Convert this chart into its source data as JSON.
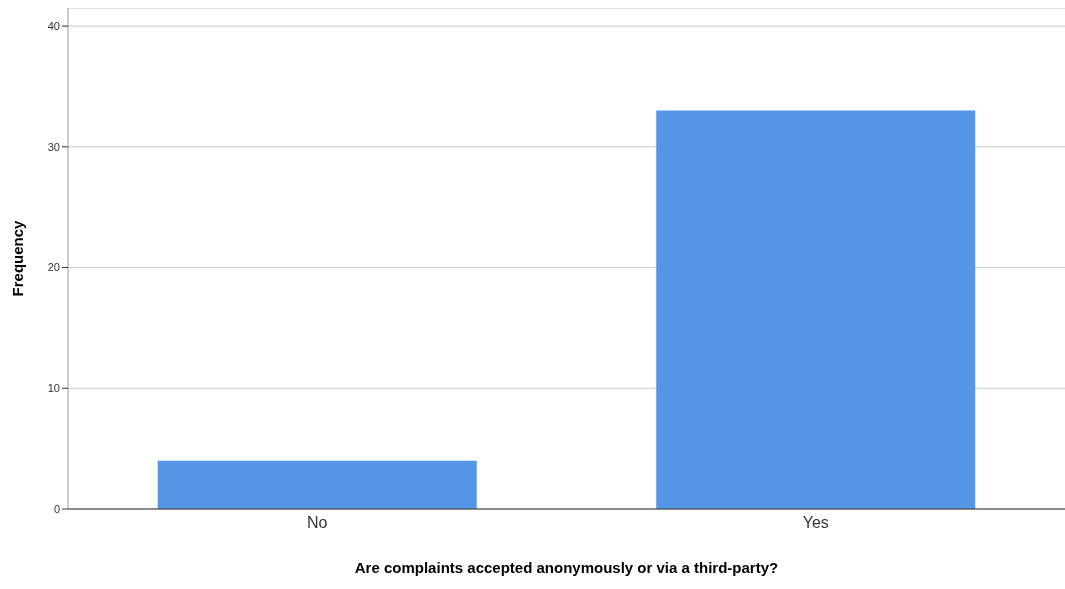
{
  "chart_data": {
    "type": "bar",
    "xlabel": "Are complaints accepted anonymously or via a third-party?",
    "ylabel": "Frequency",
    "categories": [
      "No",
      "Yes"
    ],
    "values": [
      4,
      33
    ],
    "color": "#5596e6",
    "ylim": [
      0,
      41.5
    ],
    "yticks": [
      0,
      10,
      20,
      30,
      40
    ],
    "grid": "y"
  }
}
